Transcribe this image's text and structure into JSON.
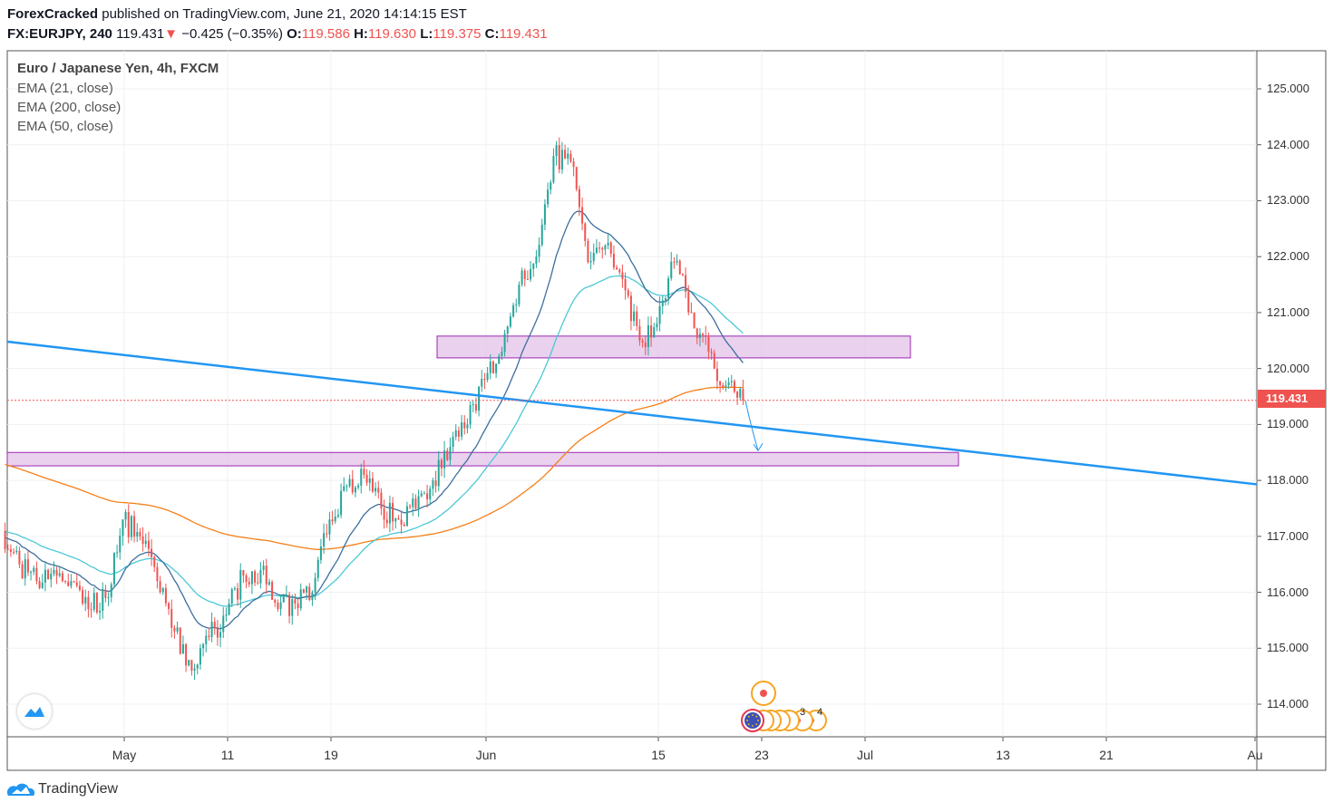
{
  "header": {
    "author": "ForexCracked",
    "published": "published on TradingView.com, June 21, 2020 14:14:15 EST",
    "symbol": "FX:EURJPY, 240",
    "price": "119.431",
    "change": "−0.425 (−0.35%)",
    "o_label": "O:",
    "o": "119.586",
    "h_label": "H:",
    "h": "119.630",
    "l_label": "L:",
    "l": "119.375",
    "c_label": "C:",
    "c": "119.431"
  },
  "legend": {
    "title": "Euro / Japanese Yen, 4h, FXCM",
    "ema1": "EMA (21, close)",
    "ema2": "EMA (200, close)",
    "ema3": "EMA (50, close)"
  },
  "footer": {
    "brand": "TradingView"
  },
  "colors": {
    "up": "#26a69a",
    "down": "#ef5350",
    "ema21": "#3d6e9e",
    "ema50": "#4cc9d6",
    "ema200": "#f57f17",
    "trendline": "#2196f3",
    "zone_fill": "#e1bee7",
    "zone_border": "#9c27b0"
  },
  "chart_data": {
    "type": "candlestick",
    "symbol": "EURJPY",
    "interval": "4h",
    "last_price": 119.431,
    "last_price_label": "119.431",
    "price_ticks": [
      "125.000",
      "124.000",
      "123.000",
      "122.000",
      "121.000",
      "120.000",
      "119.000",
      "118.000",
      "117.000",
      "116.000",
      "115.000",
      "114.000"
    ],
    "time_ticks": [
      {
        "label": "May",
        "date": "2020-05-01"
      },
      {
        "label": "11",
        "date": "2020-05-11"
      },
      {
        "label": "19",
        "date": "2020-05-19"
      },
      {
        "label": "Jun",
        "date": "2020-06-01"
      },
      {
        "label": "15",
        "date": "2020-06-15"
      },
      {
        "label": "23",
        "date": "2020-06-23"
      },
      {
        "label": "Jul",
        "date": "2020-07-01"
      },
      {
        "label": "13",
        "date": "2020-07-13"
      },
      {
        "label": "21",
        "date": "2020-07-21"
      },
      {
        "label": "Au",
        "date": "2020-08-01"
      }
    ],
    "first_open": 117.1,
    "daily_closes": [
      116.5,
      116.2,
      116.4,
      116.2,
      115.7,
      115.9,
      117.3,
      117.0,
      116.2,
      115.3,
      114.6,
      115.2,
      115.6,
      116.3,
      116.4,
      115.7,
      115.8,
      116.0,
      117.3,
      117.9,
      118.1,
      117.5,
      117.3,
      117.5,
      118.0,
      118.6,
      119.0,
      119.8,
      120.3,
      121.5,
      122.0,
      123.8,
      123.7,
      121.9,
      122.2,
      121.6,
      120.5,
      120.8,
      121.9,
      121.0,
      120.3,
      119.7,
      119.431
    ],
    "indicators": [
      "EMA 21",
      "EMA 200",
      "EMA 50"
    ],
    "drawings": {
      "trendline": {
        "from_price": 120.48,
        "to_price": 117.93
      },
      "zone_upper": {
        "top": 120.58,
        "bottom": 120.19
      },
      "zone_lower": {
        "top": 118.5,
        "bottom": 118.26
      },
      "arrow_target": 118.5
    },
    "events": {
      "labels": [
        "3",
        "4"
      ]
    }
  }
}
